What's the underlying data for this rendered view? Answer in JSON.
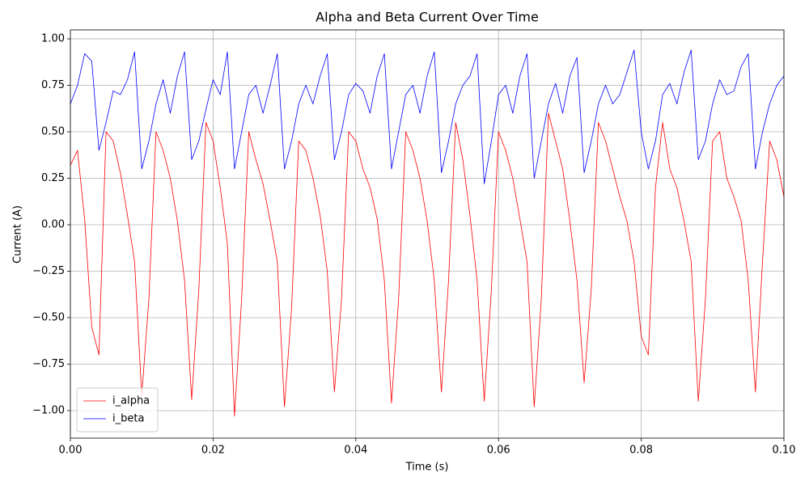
{
  "chart_data": {
    "type": "line",
    "title": "Alpha and Beta Current Over Time",
    "x_label": "Time (s)",
    "y_label": "Current (A)",
    "x": [
      0,
      0.001,
      0.002,
      0.003,
      0.004,
      0.005,
      0.006,
      0.007,
      0.008,
      0.009,
      0.01,
      0.011,
      0.012,
      0.013,
      0.014,
      0.015,
      0.016,
      0.017,
      0.018,
      0.019,
      0.02,
      0.021,
      0.022,
      0.023,
      0.024,
      0.025,
      0.026,
      0.027,
      0.028,
      0.029,
      0.03,
      0.031,
      0.032,
      0.033,
      0.034,
      0.035,
      0.036,
      0.037,
      0.038,
      0.039,
      0.04,
      0.041,
      0.042,
      0.043,
      0.044,
      0.045,
      0.046,
      0.047,
      0.048,
      0.049,
      0.05,
      0.051,
      0.052,
      0.053,
      0.054,
      0.055,
      0.056,
      0.057,
      0.058,
      0.059,
      0.06,
      0.061,
      0.062,
      0.063,
      0.064,
      0.065,
      0.066,
      0.067,
      0.068,
      0.069,
      0.07,
      0.071,
      0.072,
      0.073,
      0.074,
      0.075,
      0.076,
      0.077,
      0.078,
      0.079,
      0.08,
      0.081,
      0.082,
      0.083,
      0.084,
      0.085,
      0.086,
      0.087,
      0.088,
      0.089,
      0.09,
      0.091,
      0.092,
      0.093,
      0.094,
      0.095,
      0.096,
      0.097,
      0.098,
      0.099,
      0.1
    ],
    "series": [
      {
        "name": "i_alpha",
        "color": "#ff0000",
        "values": [
          0.32,
          0.4,
          0.03,
          -0.55,
          -0.7,
          0.5,
          0.45,
          0.28,
          0.05,
          -0.2,
          -0.92,
          -0.4,
          0.5,
          0.4,
          0.25,
          0.02,
          -0.3,
          -0.94,
          -0.35,
          0.55,
          0.45,
          0.2,
          -0.1,
          -1.03,
          -0.4,
          0.5,
          0.35,
          0.22,
          0.02,
          -0.2,
          -0.98,
          -0.45,
          0.45,
          0.4,
          0.25,
          0.05,
          -0.25,
          -0.9,
          -0.4,
          0.5,
          0.45,
          0.3,
          0.2,
          0.03,
          -0.3,
          -0.96,
          -0.4,
          0.5,
          0.4,
          0.25,
          0.02,
          -0.3,
          -0.9,
          -0.3,
          0.55,
          0.35,
          0.05,
          -0.3,
          -0.95,
          -0.35,
          0.5,
          0.4,
          0.25,
          0.03,
          -0.2,
          -0.98,
          -0.4,
          0.6,
          0.45,
          0.3,
          0.02,
          -0.3,
          -0.85,
          -0.35,
          0.55,
          0.45,
          0.3,
          0.15,
          0.02,
          -0.2,
          -0.6,
          -0.7,
          0.2,
          0.55,
          0.3,
          0.2,
          0.02,
          -0.2,
          -0.95,
          -0.4,
          0.45,
          0.5,
          0.25,
          0.15,
          0.02,
          -0.3,
          -0.9,
          -0.2,
          0.45,
          0.35,
          0.15
        ]
      },
      {
        "name": "i_beta",
        "color": "#0000ff",
        "values": [
          0.65,
          0.75,
          0.92,
          0.88,
          0.4,
          0.55,
          0.72,
          0.7,
          0.78,
          0.93,
          0.3,
          0.45,
          0.65,
          0.78,
          0.6,
          0.8,
          0.93,
          0.35,
          0.45,
          0.62,
          0.78,
          0.7,
          0.93,
          0.3,
          0.5,
          0.7,
          0.75,
          0.6,
          0.75,
          0.92,
          0.3,
          0.45,
          0.65,
          0.75,
          0.65,
          0.8,
          0.92,
          0.35,
          0.5,
          0.7,
          0.76,
          0.72,
          0.6,
          0.8,
          0.92,
          0.3,
          0.5,
          0.7,
          0.75,
          0.6,
          0.8,
          0.93,
          0.28,
          0.45,
          0.65,
          0.75,
          0.8,
          0.92,
          0.22,
          0.45,
          0.7,
          0.75,
          0.6,
          0.8,
          0.92,
          0.25,
          0.45,
          0.65,
          0.76,
          0.6,
          0.8,
          0.9,
          0.28,
          0.45,
          0.65,
          0.75,
          0.65,
          0.7,
          0.82,
          0.94,
          0.5,
          0.3,
          0.45,
          0.7,
          0.76,
          0.65,
          0.82,
          0.94,
          0.35,
          0.45,
          0.65,
          0.78,
          0.7,
          0.72,
          0.85,
          0.92,
          0.3,
          0.5,
          0.65,
          0.75,
          0.8
        ]
      }
    ],
    "xlim": [
      0,
      0.1
    ],
    "xticks": [
      {
        "value": 0,
        "label": "0.00"
      },
      {
        "value": 0.02,
        "label": "0.02"
      },
      {
        "value": 0.04,
        "label": "0.04"
      },
      {
        "value": 0.06,
        "label": "0.06"
      },
      {
        "value": 0.08,
        "label": "0.08"
      },
      {
        "value": 0.1,
        "label": "0.10"
      }
    ],
    "ylim": [
      -1.148,
      1.048
    ],
    "yticks": [
      {
        "value": -1,
        "label": "−1.00"
      },
      {
        "value": -0.75,
        "label": "−0.75"
      },
      {
        "value": -0.5,
        "label": "−0.50"
      },
      {
        "value": -0.25,
        "label": "−0.25"
      },
      {
        "value": 0,
        "label": "0.00"
      },
      {
        "value": 0.25,
        "label": "0.25"
      },
      {
        "value": 0.5,
        "label": "0.50"
      },
      {
        "value": 0.75,
        "label": "0.75"
      },
      {
        "value": 1,
        "label": "1.00"
      }
    ],
    "grid": true,
    "legend": "lower left"
  }
}
